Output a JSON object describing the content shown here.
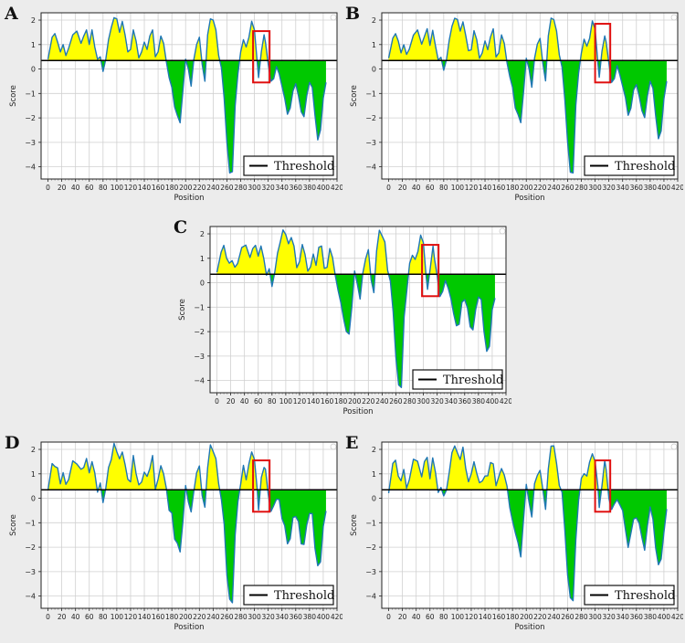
{
  "chart_data": [
    {
      "panel": "A",
      "type": "area",
      "xlabel": "Position",
      "ylabel": "Score",
      "xlim": [
        -10,
        420
      ],
      "ylim": [
        -4.5,
        2.3
      ],
      "threshold": 0.35,
      "legend": "Threshold",
      "legend_position": "bottom-right",
      "highlight_x": [
        298,
        322
      ],
      "highlight_y": [
        -0.55,
        1.55
      ],
      "variant": 0
    },
    {
      "panel": "B",
      "type": "area",
      "xlabel": "Position",
      "ylabel": "Score",
      "xlim": [
        -10,
        420
      ],
      "ylim": [
        -4.5,
        2.3
      ],
      "threshold": 0.35,
      "legend": "Threshold",
      "legend_position": "bottom-right",
      "highlight_x": [
        300,
        322
      ],
      "highlight_y": [
        -0.55,
        1.85
      ],
      "variant": 1
    },
    {
      "panel": "C",
      "type": "area",
      "xlabel": "Position",
      "ylabel": "Score",
      "xlim": [
        -10,
        420
      ],
      "ylim": [
        -4.5,
        2.3
      ],
      "threshold": 0.35,
      "legend": "Threshold",
      "legend_position": "bottom-right",
      "highlight_x": [
        298,
        322
      ],
      "highlight_y": [
        -0.55,
        1.55
      ],
      "variant": 2
    },
    {
      "panel": "D",
      "type": "area",
      "xlabel": "Position",
      "ylabel": "Score",
      "xlim": [
        -10,
        420
      ],
      "ylim": [
        -4.5,
        2.3
      ],
      "threshold": 0.35,
      "legend": "Threshold",
      "legend_position": "bottom-right",
      "highlight_x": [
        298,
        322
      ],
      "highlight_y": [
        -0.55,
        1.55
      ],
      "variant": 3
    },
    {
      "panel": "E",
      "type": "area",
      "xlabel": "Position",
      "ylabel": "Score",
      "xlim": [
        -10,
        420
      ],
      "ylim": [
        -4.5,
        2.3
      ],
      "threshold": 0.35,
      "legend": "Threshold",
      "legend_position": "bottom-right",
      "highlight_x": [
        300,
        322
      ],
      "highlight_y": [
        -0.55,
        1.55
      ],
      "variant": 4
    }
  ],
  "profile": {
    "x": [
      0,
      6,
      10,
      14,
      18,
      22,
      26,
      30,
      36,
      42,
      48,
      52,
      56,
      60,
      64,
      68,
      72,
      76,
      80,
      84,
      88,
      92,
      96,
      100,
      104,
      108,
      112,
      116,
      120,
      124,
      128,
      132,
      136,
      140,
      144,
      148,
      152,
      156,
      160,
      164,
      168,
      172,
      176,
      180,
      184,
      188,
      192,
      196,
      200,
      204,
      208,
      212,
      216,
      220,
      224,
      228,
      232,
      236,
      240,
      244,
      248,
      252,
      256,
      260,
      264,
      268,
      272,
      276,
      280,
      284,
      288,
      292,
      296,
      300,
      304,
      306,
      310,
      314,
      316,
      320,
      324,
      328,
      332,
      336,
      340,
      344,
      348,
      352,
      356,
      360,
      364,
      368,
      372,
      376,
      380,
      384,
      388,
      392,
      396,
      400,
      404
    ],
    "y": [
      0.4,
      1.3,
      1.45,
      1.1,
      0.7,
      1.0,
      0.55,
      0.85,
      1.4,
      1.55,
      1.05,
      1.35,
      1.6,
      1.0,
      1.6,
      0.9,
      0.4,
      0.5,
      -0.1,
      0.4,
      1.2,
      1.7,
      2.1,
      2.05,
      1.5,
      1.95,
      1.4,
      0.7,
      0.8,
      1.6,
      1.15,
      0.45,
      0.7,
      1.1,
      0.8,
      1.35,
      1.6,
      0.5,
      0.7,
      1.35,
      1.05,
      0.3,
      -0.35,
      -0.75,
      -1.55,
      -1.9,
      -2.2,
      -0.9,
      0.4,
      0.0,
      -0.7,
      0.4,
      1.0,
      1.3,
      0.2,
      -0.5,
      1.4,
      2.05,
      2.0,
      1.6,
      0.55,
      0.05,
      -1.2,
      -3.0,
      -4.25,
      -4.2,
      -1.5,
      -0.2,
      0.7,
      1.2,
      0.9,
      1.3,
      1.95,
      1.6,
      0.3,
      -0.35,
      0.7,
      1.4,
      1.1,
      0.2,
      -0.5,
      -0.4,
      0.1,
      -0.2,
      -0.7,
      -1.2,
      -1.85,
      -1.6,
      -0.9,
      -0.6,
      -1.1,
      -1.75,
      -1.95,
      -1.1,
      -0.55,
      -0.75,
      -1.9,
      -2.9,
      -2.5,
      -1.2,
      -0.55
    ]
  },
  "x_ticks": [
    "0",
    "20",
    "40",
    "60",
    "80",
    "100",
    "120",
    "140",
    "160",
    "180",
    "200",
    "220",
    "240",
    "260",
    "280",
    "300",
    "320",
    "340",
    "360",
    "380",
    "400",
    "420"
  ],
  "y_ticks": [
    "2",
    "1",
    "0",
    "−1",
    "−2",
    "−3",
    "−4"
  ],
  "colors": {
    "fill_above": "#ffff00",
    "fill_below": "#00c800",
    "line": "#1f77b4",
    "threshold_line": "#000000",
    "highlight_box": "#e01010",
    "background": "#ececec"
  }
}
